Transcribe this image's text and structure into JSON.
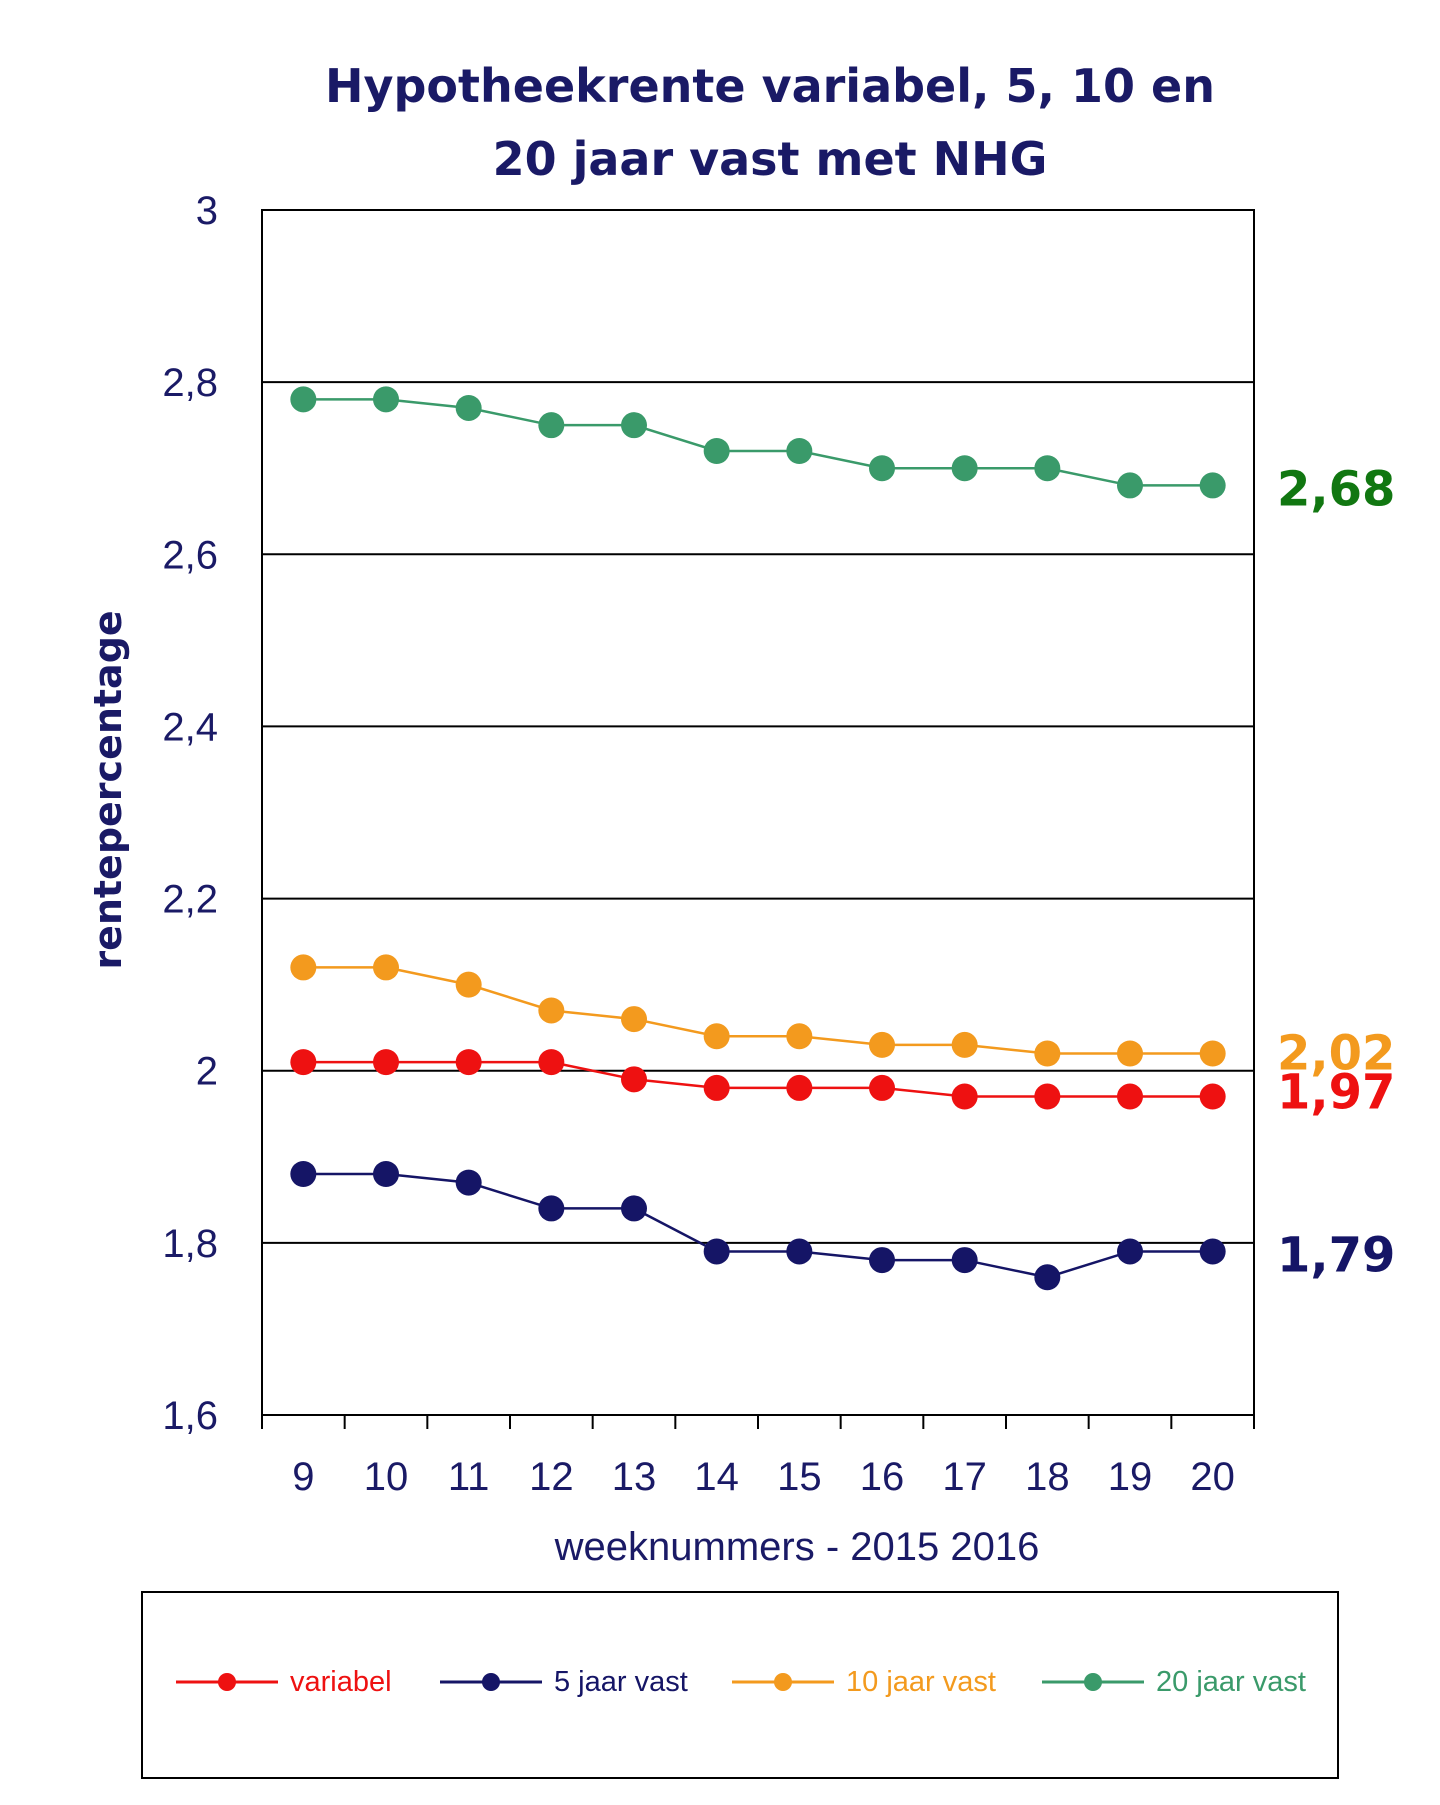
{
  "chart_data": {
    "type": "line",
    "title_lines": [
      "Hypotheekrente variabel, 5, 10 en",
      "20 jaar vast met NHG"
    ],
    "ylabel": "rentepercentage",
    "xlabel": "weeknummers  - 2015 2016",
    "ylim": [
      1.6,
      3.0
    ],
    "yticks": [
      1.6,
      1.8,
      2.0,
      2.2,
      2.4,
      2.6,
      2.8,
      3.0
    ],
    "ytick_labels": [
      "1,6",
      "1,8",
      "2",
      "2,2",
      "2,4",
      "2,6",
      "2,8",
      "3"
    ],
    "categories": [
      "9",
      "10",
      "11",
      "12",
      "13",
      "14",
      "15",
      "16",
      "17",
      "18",
      "19",
      "20"
    ],
    "grid": true,
    "legend_position": "bottom",
    "series": [
      {
        "name": "variabel",
        "color": "#ee1111",
        "end_label": "1,97",
        "values": [
          2.01,
          2.01,
          2.01,
          2.01,
          1.99,
          1.98,
          1.98,
          1.98,
          1.97,
          1.97,
          1.97,
          1.97
        ]
      },
      {
        "name": "5 jaar vast",
        "color": "#151566",
        "end_label": "1,79",
        "values": [
          1.88,
          1.88,
          1.87,
          1.84,
          1.84,
          1.79,
          1.79,
          1.78,
          1.78,
          1.76,
          1.79,
          1.79
        ]
      },
      {
        "name": "10 jaar vast",
        "color": "#f39a1e",
        "end_label": "2,02",
        "values": [
          2.12,
          2.12,
          2.1,
          2.07,
          2.06,
          2.04,
          2.04,
          2.03,
          2.03,
          2.02,
          2.02,
          2.02
        ]
      },
      {
        "name": "20 jaar vast",
        "color": "#3a9a6a",
        "end_label": "2,68",
        "end_label_color": "#117711",
        "values": [
          2.78,
          2.78,
          2.77,
          2.75,
          2.75,
          2.72,
          2.72,
          2.7,
          2.7,
          2.7,
          2.68,
          2.68
        ]
      }
    ]
  }
}
